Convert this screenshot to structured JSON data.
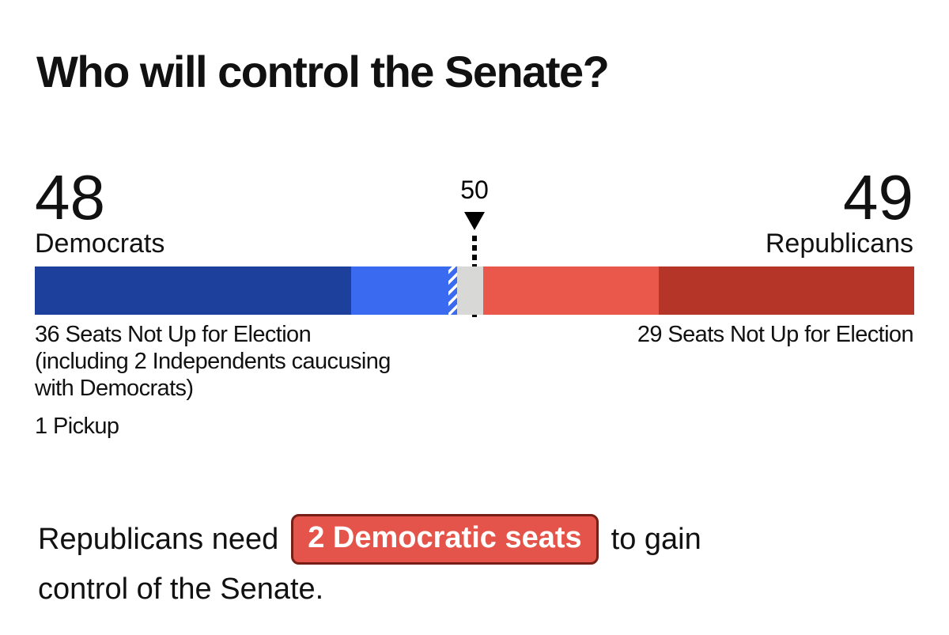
{
  "title": "Who will control the Senate?",
  "chart_data": {
    "type": "bar",
    "subtype": "stacked-horizontal-seat-bar",
    "total_seats": 100,
    "majority_marker": {
      "label": "50",
      "value": 50
    },
    "left_party": {
      "seats": "48",
      "label": "Democrats"
    },
    "right_party": {
      "seats": "49",
      "label": "Republicans"
    },
    "segments": [
      {
        "name": "dem-seats-not-up",
        "seats": 36,
        "color": "#1c409c"
      },
      {
        "name": "dem-seats-won",
        "seats": 11,
        "color": "#3a6af0"
      },
      {
        "name": "dem-pickup",
        "seats": 1,
        "color": "#3a6af0",
        "pattern": "white-diagonal-stripes"
      },
      {
        "name": "undecided",
        "seats": 3,
        "color": "#d8d8d6"
      },
      {
        "name": "rep-seats-won",
        "seats": 20,
        "color": "#ea584c"
      },
      {
        "name": "rep-seats-not-up",
        "seats": 29,
        "color": "#b53629"
      }
    ],
    "annotations": {
      "left_lines": [
        "36 Seats Not Up for Election",
        "(including 2 Independents caucusing",
        "with Democrats)"
      ],
      "left_pickup": "1 Pickup",
      "right": "29 Seats Not Up for Election"
    }
  },
  "footer": {
    "text_before_badge": "Republicans need",
    "badge_label": "2 Democratic seats",
    "text_after_badge": "to gain",
    "text_line2": "control of the Senate.",
    "badge_bg": "#e4544a",
    "badge_border": "#771f17",
    "badge_text_color": "#ffffff"
  },
  "colors": {
    "dem_dark": "#1c409c",
    "dem_light": "#3a6af0",
    "undecided_gray": "#d8d8d6",
    "rep_light": "#ea584c",
    "rep_dark": "#b53629",
    "marker_black": "#000000",
    "text": "#111111"
  }
}
